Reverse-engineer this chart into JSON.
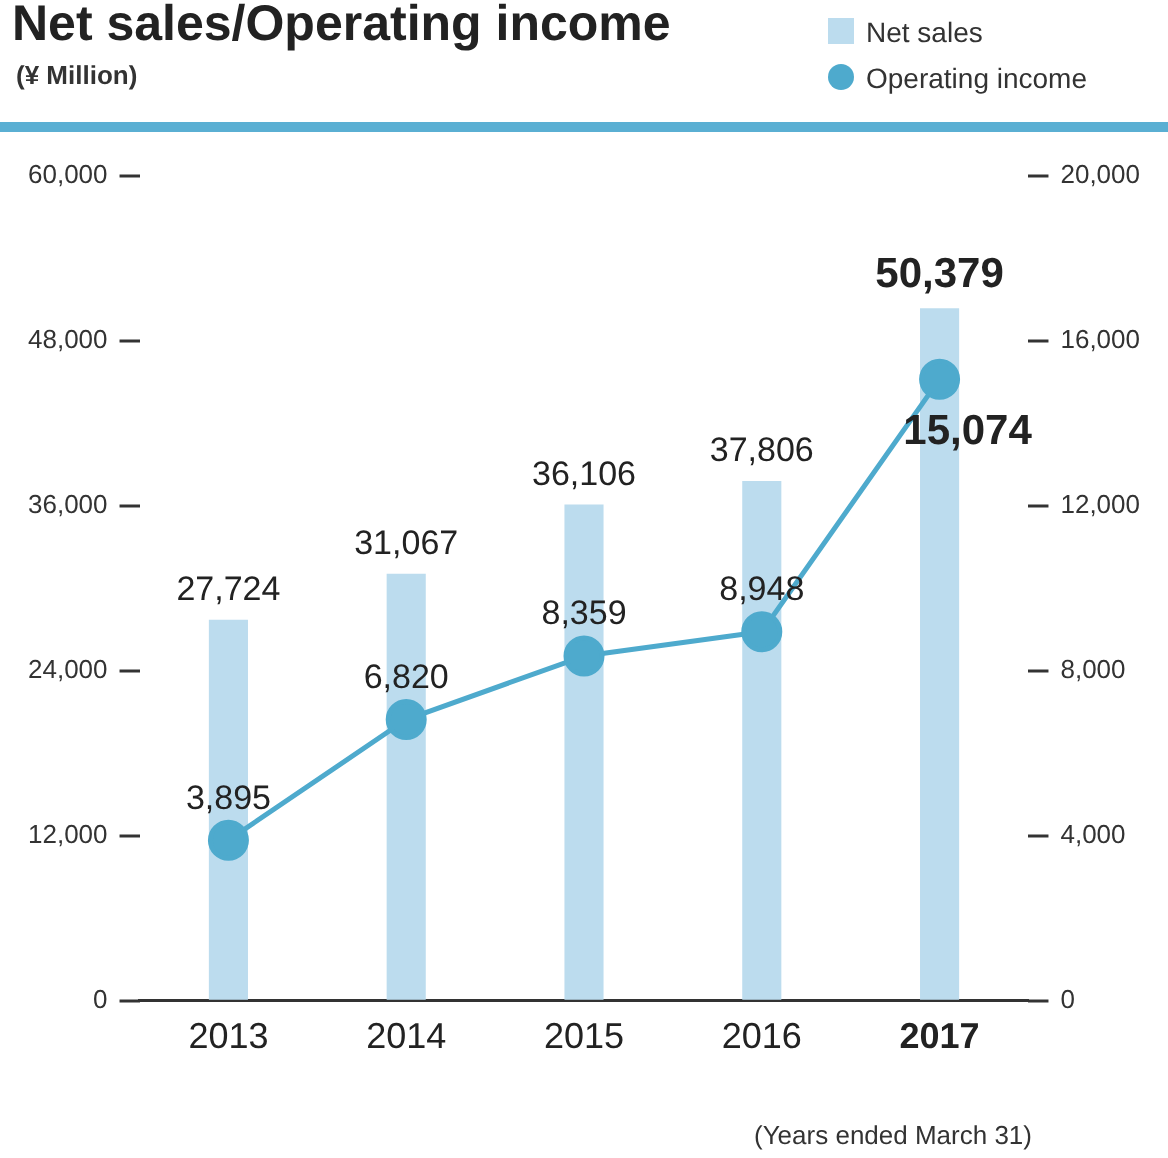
{
  "chart_data": {
    "type": "bar",
    "title": "Net sales/Operating income",
    "subtitle": "(¥ Million)",
    "categories": [
      "2013",
      "2014",
      "2015",
      "2016",
      "2017"
    ],
    "series": [
      {
        "name": "Net sales",
        "color": "#bcdcee",
        "values": [
          27724,
          31067,
          36106,
          37806,
          50379
        ],
        "value_labels": [
          "27,724",
          "31,067",
          "36,106",
          "37,806",
          "50,379"
        ]
      },
      {
        "name": "Operating income",
        "type": "line",
        "axis": "y2",
        "color": "#4eaacd",
        "marker": "circle",
        "values": [
          3895,
          6820,
          8359,
          8948,
          15074
        ],
        "value_labels": [
          "3,895",
          "6,820",
          "8,359",
          "8,948",
          "15,074"
        ]
      }
    ],
    "ylim": [
      0,
      60000
    ],
    "yticks": [
      0,
      {
        "value": 12000,
        "label": "12,000"
      },
      {
        "value": 24000,
        "label": "24,000"
      },
      {
        "value": 36000,
        "label": "36,000"
      },
      {
        "value": 48000,
        "label": "48,000"
      },
      {
        "value": 60000,
        "label": "60,000"
      }
    ],
    "y2lim": [
      0,
      20000
    ],
    "y2ticks": [
      0,
      {
        "value": 4000,
        "label": "4,000"
      },
      {
        "value": 8000,
        "label": "8,000"
      },
      {
        "value": 12000,
        "label": "12,000"
      },
      {
        "value": 16000,
        "label": "16,000"
      },
      {
        "value": 20000,
        "label": "20,000"
      }
    ],
    "grid": false,
    "legend": "top right",
    "annotations": [
      "(Years ended March 31)"
    ]
  }
}
